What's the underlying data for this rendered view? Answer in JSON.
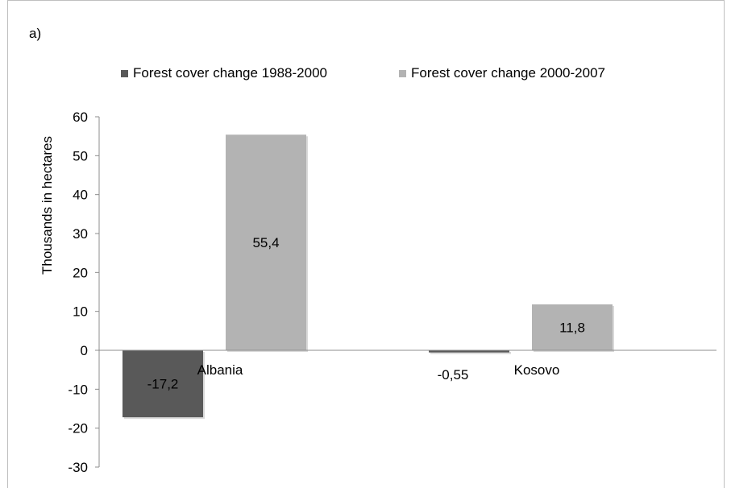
{
  "chart_data": {
    "type": "bar",
    "panel_label": "a)",
    "title": "",
    "xlabel": "",
    "ylabel": "Thousands in hectares",
    "categories": [
      "Albania",
      "Kosovo"
    ],
    "series": [
      {
        "name": "Forest cover change 1988-2000",
        "values": [
          -17.2,
          -0.55
        ],
        "labels": [
          "-17,2",
          "-0,55"
        ],
        "color": "#595959"
      },
      {
        "name": "Forest cover change 2000-2007",
        "values": [
          55.4,
          11.8
        ],
        "labels": [
          "55,4",
          "11,8"
        ],
        "color": "#b3b3b3"
      }
    ],
    "ylim": [
      -30,
      60
    ],
    "yticks": [
      -30,
      -20,
      -10,
      0,
      10,
      20,
      30,
      40,
      50,
      60
    ],
    "grid": false,
    "legend_position": "top"
  }
}
